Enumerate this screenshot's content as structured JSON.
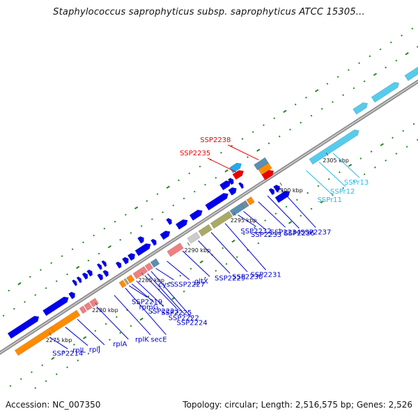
{
  "title": "Staphylococcus saprophyticus subsp. saprophyticus ATCC 15305...",
  "footer": {
    "accession": "Accession: NC_007350",
    "stats": "Topology: circular; Length: 2,516,575 bp; Genes: 2,526"
  },
  "colors": {
    "backbone": "#8c8c8c",
    "forward_cds": "#0000ee",
    "reverse_cds": "#ff8c00",
    "rRNA": "#f08080",
    "tRNA": "#aaaa66",
    "pseudogene": "#55ccee",
    "label_red": "#ee0000",
    "label_blue": "#0000cc",
    "label_cyan": "#22bbee",
    "gc_dots": "#228822"
  },
  "scale": {
    "unit": "kbp",
    "ticks": [
      {
        "label": "2275 kbp",
        "kbp": 2275
      },
      {
        "label": "2280 kbp",
        "kbp": 2280
      },
      {
        "label": "2285 kbp",
        "kbp": 2285
      },
      {
        "label": "2290 kbp",
        "kbp": 2290
      },
      {
        "label": "2295 kbp",
        "kbp": 2295
      },
      {
        "label": "2300 kbp",
        "kbp": 2300
      },
      {
        "label": "2305 kbp",
        "kbp": 2305
      }
    ]
  },
  "features": [
    {
      "kbp": 2271.8,
      "len": 3.2,
      "track": 1,
      "color": "#0000ee"
    },
    {
      "kbp": 2271.5,
      "len": 4.0,
      "track": -1,
      "color": "#ff8c00"
    },
    {
      "kbp": 2275.4,
      "len": 2.8,
      "track": -1,
      "color": "#ff8c00"
    },
    {
      "kbp": 2275.6,
      "len": 2.6,
      "track": 1,
      "color": "#0000ee"
    },
    {
      "kbp": 2278.4,
      "len": 0.5,
      "track": 1,
      "color": "#0000ee"
    },
    {
      "kbp": 2278.5,
      "len": 0.4,
      "track": -1,
      "color": "#f08080"
    },
    {
      "kbp": 2279.0,
      "len": 0.5,
      "track": -1,
      "color": "#f08080"
    },
    {
      "kbp": 2279.6,
      "len": 0.6,
      "track": -1,
      "color": "#f08080"
    },
    {
      "kbp": 2279.3,
      "len": 0.3,
      "track": 2,
      "color": "#0000ee"
    },
    {
      "kbp": 2279.8,
      "len": 0.3,
      "track": 2,
      "color": "#0000ee"
    },
    {
      "kbp": 2280.4,
      "len": 0.4,
      "track": 2,
      "color": "#0000ee"
    },
    {
      "kbp": 2280.9,
      "len": 0.4,
      "track": 2,
      "color": "#0000ee"
    },
    {
      "kbp": 2281.5,
      "len": 0.4,
      "track": 1,
      "color": "#0000ee"
    },
    {
      "kbp": 2282.1,
      "len": 0.4,
      "track": 1,
      "color": "#0000ee"
    },
    {
      "kbp": 2282.0,
      "len": 0.3,
      "track": 2,
      "color": "#0000ee"
    },
    {
      "kbp": 2282.5,
      "len": 0.3,
      "track": 2,
      "color": "#0000ee"
    },
    {
      "kbp": 2282.8,
      "len": 0.4,
      "track": -1,
      "color": "#ff8c00"
    },
    {
      "kbp": 2283.3,
      "len": 0.2,
      "track": -1,
      "color": "#aaaa66"
    },
    {
      "kbp": 2283.6,
      "len": 0.5,
      "track": -1,
      "color": "#ff8c00"
    },
    {
      "kbp": 2283.5,
      "len": 0.4,
      "track": 1,
      "color": "#0000ee"
    },
    {
      "kbp": 2284.2,
      "len": 0.5,
      "track": 1,
      "color": "#0000ee"
    },
    {
      "kbp": 2284.8,
      "len": 0.6,
      "track": 1,
      "color": "#0000ee"
    },
    {
      "kbp": 2284.3,
      "len": 1.2,
      "track": -1,
      "color": "#f08080"
    },
    {
      "kbp": 2285.6,
      "len": 0.5,
      "track": -1,
      "color": "#f08080"
    },
    {
      "kbp": 2286.2,
      "len": 0.6,
      "track": -1,
      "color": "#5a8fb5"
    },
    {
      "kbp": 2285.6,
      "len": 1.5,
      "track": 1,
      "color": "#0000ee"
    },
    {
      "kbp": 2286.4,
      "len": 0.5,
      "track": 2,
      "color": "#0000ee"
    },
    {
      "kbp": 2287.3,
      "len": 0.4,
      "track": 1,
      "color": "#0000ee"
    },
    {
      "kbp": 2288.0,
      "len": 1.4,
      "track": -1,
      "color": "#f08080"
    },
    {
      "kbp": 2288.3,
      "len": 0.9,
      "track": 1,
      "color": "#0000ee"
    },
    {
      "kbp": 2289.5,
      "len": 0.4,
      "track": 2,
      "color": "#0000ee"
    },
    {
      "kbp": 2290.2,
      "len": 1.0,
      "track": -1,
      "color": "#cccccc"
    },
    {
      "kbp": 2290.0,
      "len": 1.1,
      "track": 1,
      "color": "#0000ee"
    },
    {
      "kbp": 2291.4,
      "len": 1.1,
      "track": -1,
      "color": "#aaaa66"
    },
    {
      "kbp": 2291.5,
      "len": 1.2,
      "track": 1,
      "color": "#0000ee"
    },
    {
      "kbp": 2292.7,
      "len": 2.0,
      "track": -1,
      "color": "#aaaa66"
    },
    {
      "kbp": 2293.2,
      "len": 2.3,
      "track": 1,
      "color": "#0000ee"
    },
    {
      "kbp": 2294.8,
      "len": 1.2,
      "track": -1,
      "color": "#5a8fb5"
    },
    {
      "kbp": 2295.3,
      "len": 1.0,
      "track": 2,
      "color": "#0000ee"
    },
    {
      "kbp": 2295.7,
      "len": 0.7,
      "track": 1,
      "color": "#0000ee"
    },
    {
      "kbp": 2296.2,
      "len": 0.4,
      "track": 2,
      "color": "#0000ee"
    },
    {
      "kbp": 2296.0,
      "len": 0.5,
      "track": -1,
      "color": "#778899"
    },
    {
      "kbp": 2296.6,
      "len": 0.5,
      "track": -1,
      "color": "#ff8c00"
    },
    {
      "kbp": 2296.8,
      "len": 0.3,
      "track": 1,
      "color": "#0000ee"
    },
    {
      "kbp": 2303.4,
      "len": 5.2,
      "track": -1,
      "color": "#55ccee"
    },
    {
      "kbp": 2309.2,
      "len": 1.4,
      "track": 1,
      "color": "#55ccee"
    },
    {
      "kbp": 2311.2,
      "len": 2.8,
      "track": 1,
      "color": "#55ccee"
    },
    {
      "kbp": 2314.8,
      "len": 1.8,
      "track": 1,
      "color": "#55ccee"
    }
  ],
  "detached": [
    {
      "kbp": 2298.9,
      "len": 1.4,
      "track": -2.5,
      "color": "#0000ee"
    },
    {
      "kbp": 2298.8,
      "len": 0.4,
      "track": -1.4,
      "color": "#0000ee"
    },
    {
      "kbp": 2299.3,
      "len": 0.5,
      "track": -1.4,
      "color": "#0000ee"
    },
    {
      "kbp": 2298.9,
      "len": 1.2,
      "track": 1.8,
      "color": "#5a8fb5"
    },
    {
      "kbp": 2299.0,
      "len": 1.1,
      "track": 1.1,
      "color": "#ff8c00"
    },
    {
      "kbp": 2299.0,
      "len": 1.1,
      "track": 0.4,
      "color": "#ee0000"
    },
    {
      "kbp": 2296.9,
      "len": 1.1,
      "track": 3.0,
      "color": "#22aaee"
    },
    {
      "kbp": 2296.8,
      "len": 1.0,
      "track": 2.2,
      "color": "#ee0000"
    }
  ],
  "labels": [
    {
      "text": "SSP2214",
      "kbp": 2274.8,
      "color": "#0000cc"
    },
    {
      "text": "rplL",
      "kbp": 2276.5,
      "color": "#0000cc"
    },
    {
      "text": "rplJ",
      "kbp": 2277.8,
      "color": "#0000cc"
    },
    {
      "text": "rplA",
      "kbp": 2279.9,
      "color": "#0000cc"
    },
    {
      "text": "rplK",
      "kbp": 2281.8,
      "color": "#0000cc"
    },
    {
      "text": "secE",
      "kbp": 2283.0,
      "color": "#0000cc"
    },
    {
      "text": "SSP2219",
      "kbp": 2283.4,
      "color": "#0000cc"
    },
    {
      "text": "rpmG",
      "kbp": 2283.7,
      "color": "#0000cc"
    },
    {
      "text": "SSP2223",
      "kbp": 2284.2,
      "color": "#0000cc"
    },
    {
      "text": "SSP2225",
      "kbp": 2285.1,
      "color": "#0000cc"
    },
    {
      "text": "SSP2222",
      "kbp": 2285.4,
      "color": "#0000cc"
    },
    {
      "text": "SSP2224",
      "kbp": 2285.8,
      "color": "#0000cc"
    },
    {
      "text": "cysS",
      "kbp": 2286.3,
      "color": "#0000cc"
    },
    {
      "text": "SSP2227",
      "kbp": 2287.5,
      "color": "#0000cc"
    },
    {
      "text": "gltX",
      "kbp": 2289.2,
      "color": "#0000cc"
    },
    {
      "text": "SSP2229",
      "kbp": 2290.9,
      "color": "#0000cc"
    },
    {
      "text": "SSP2230",
      "kbp": 2292.3,
      "color": "#0000cc"
    },
    {
      "text": "SSP2231",
      "kbp": 2293.8,
      "color": "#0000cc"
    },
    {
      "text": "SSP2232",
      "kbp": 2295.2,
      "color": "#0000cc"
    },
    {
      "text": "SSP2233",
      "kbp": 2295.8,
      "color": "#0000cc"
    },
    {
      "text": "SSP2234",
      "kbp": 2297.4,
      "color": "#0000cc"
    },
    {
      "text": "SSP2236",
      "kbp": 2298.4,
      "color": "#0000cc"
    },
    {
      "text": "SSP2237",
      "kbp": 2299.7,
      "color": "#0000cc"
    },
    {
      "text": "SSPr11",
      "kbp": 2302.6,
      "color": "#22bbee"
    },
    {
      "text": "SSPr12",
      "kbp": 2304.0,
      "color": "#22bbee"
    },
    {
      "text": "SSPr13",
      "kbp": 2305.5,
      "color": "#22bbee"
    },
    {
      "text": "SSP2235",
      "kbp": 2297.3,
      "color": "#ee0000"
    },
    {
      "text": "SSP2238",
      "kbp": 2299.5,
      "color": "#ee0000"
    }
  ]
}
